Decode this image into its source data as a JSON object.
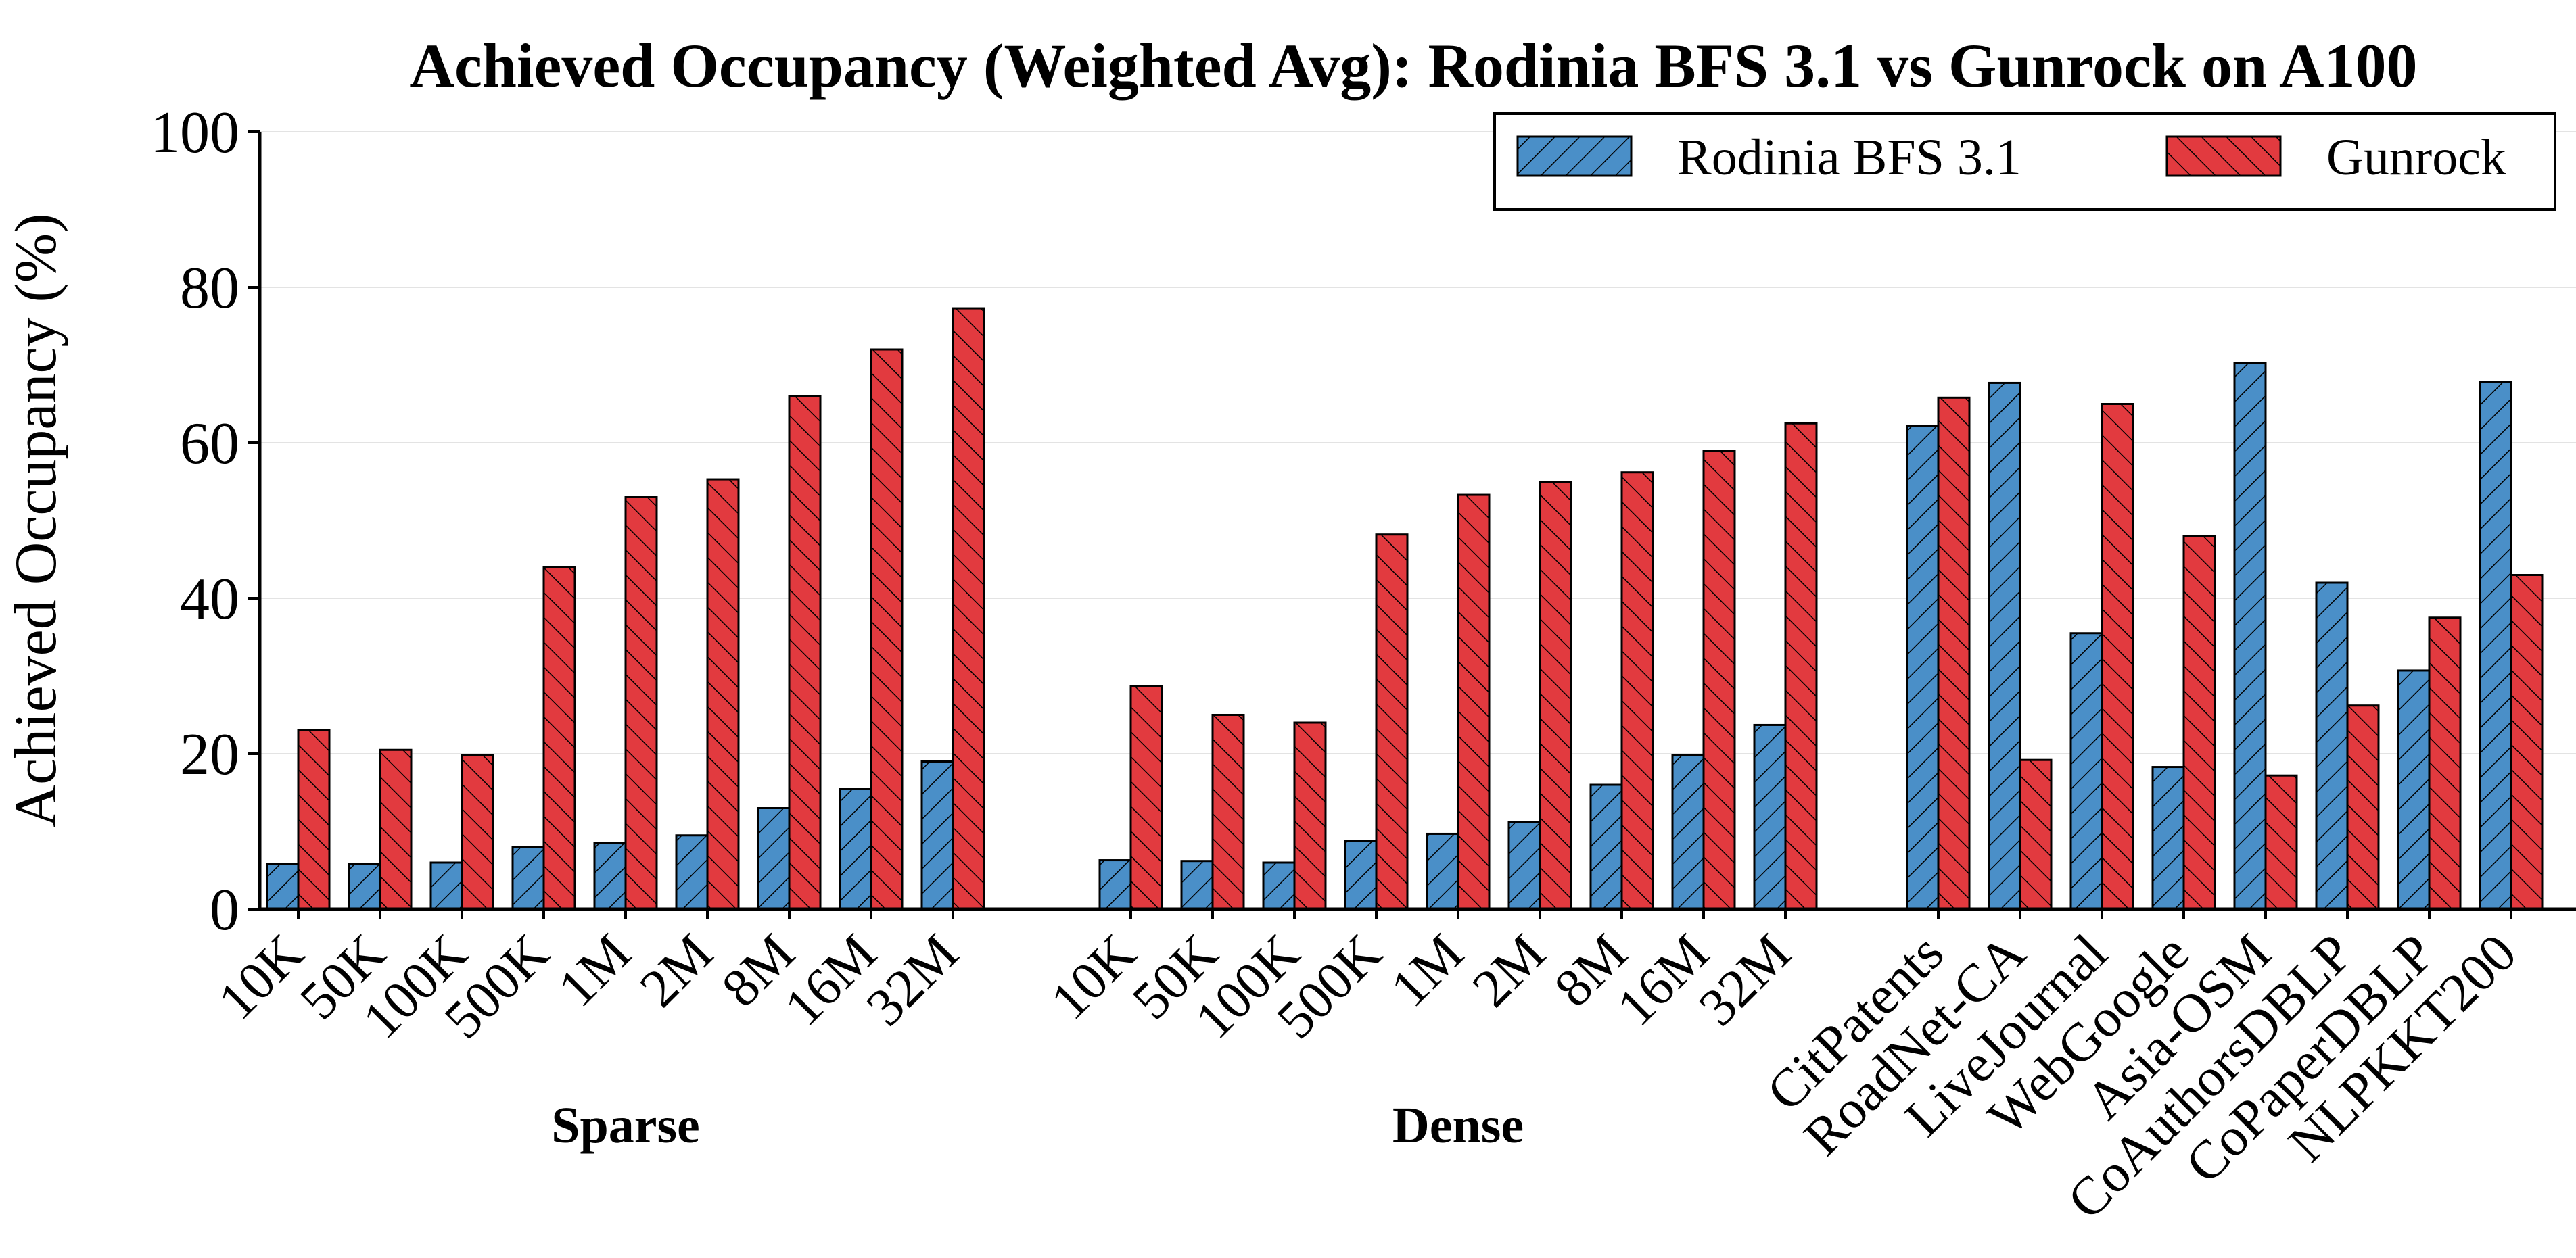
{
  "chart_data": {
    "type": "bar",
    "title": "Achieved Occupancy (Weighted Avg): Rodinia BFS 3.1 vs Gunrock on A100",
    "ylabel": "Achieved Occupancy (%)",
    "xlabel": "",
    "ylim": [
      0,
      100
    ],
    "yticks": [
      "0",
      "20",
      "40",
      "60",
      "80",
      "100"
    ],
    "grid": "horizontal",
    "legend_position": "top-right",
    "colors": {
      "Rodinia BFS 3.1": "#4a8fc8",
      "Gunrock": "#e23a3f"
    },
    "series_names": [
      "Rodinia BFS 3.1",
      "Gunrock"
    ],
    "groups": [
      {
        "label": "Sparse",
        "categories": [
          "10K",
          "50K",
          "100K",
          "500K",
          "1M",
          "2M",
          "8M",
          "16M",
          "32M"
        ],
        "series": [
          {
            "name": "Rodinia BFS 3.1",
            "values": [
              5.8,
              5.8,
              6.0,
              8.0,
              8.5,
              9.5,
              13.0,
              15.5,
              19.0
            ]
          },
          {
            "name": "Gunrock",
            "values": [
              23.0,
              20.5,
              19.8,
              44.0,
              53.0,
              55.3,
              66.0,
              72.0,
              77.3
            ]
          }
        ]
      },
      {
        "label": "Dense",
        "categories": [
          "10K",
          "50K",
          "100K",
          "500K",
          "1M",
          "2M",
          "8M",
          "16M",
          "32M"
        ],
        "series": [
          {
            "name": "Rodinia BFS 3.1",
            "values": [
              6.3,
              6.2,
              6.0,
              8.8,
              9.7,
              11.2,
              16.0,
              19.8,
              23.7
            ]
          },
          {
            "name": "Gunrock",
            "values": [
              28.7,
              25.0,
              24.0,
              48.2,
              53.3,
              55.0,
              56.2,
              59.0,
              62.5
            ]
          }
        ]
      },
      {
        "label": "",
        "categories": [
          "CitPatents",
          "RoadNet-CA",
          "LiveJournal",
          "WebGoogle",
          "Asia-OSM",
          "CoAuthorsDBLP",
          "CoPaperDBLP",
          "NLPKKT200"
        ],
        "series": [
          {
            "name": "Rodinia BFS 3.1",
            "values": [
              62.2,
              67.7,
              35.5,
              18.3,
              70.3,
              42.0,
              30.7,
              67.8
            ]
          },
          {
            "name": "Gunrock",
            "values": [
              65.8,
              19.2,
              65.0,
              48.0,
              17.2,
              26.2,
              37.5,
              43.0
            ]
          }
        ]
      }
    ]
  }
}
